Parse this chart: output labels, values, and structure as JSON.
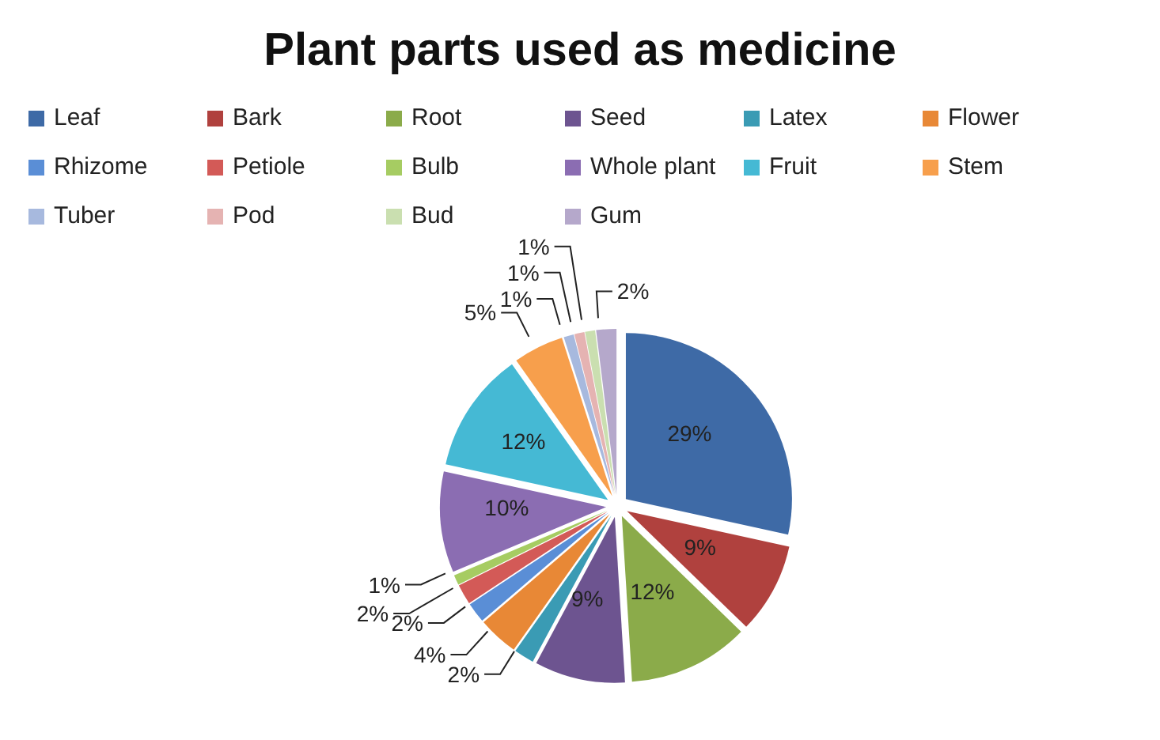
{
  "chart_data": {
    "type": "pie",
    "title": "Plant parts used as medicine",
    "categories": [
      "Leaf",
      "Bark",
      "Root",
      "Seed",
      "Latex",
      "Flower",
      "Rhizome",
      "Petiole",
      "Bulb",
      "Whole plant",
      "Fruit",
      "Stem",
      "Tuber",
      "Pod",
      "Bud",
      "Gum"
    ],
    "values": [
      29,
      9,
      12,
      9,
      2,
      4,
      2,
      2,
      1,
      10,
      12,
      5,
      1,
      1,
      1,
      2
    ],
    "value_labels": [
      "29%",
      "9%",
      "12%",
      "9%",
      "2%",
      "4%",
      "2%",
      "2%",
      "1%",
      "10%",
      "12%",
      "5%",
      "1%",
      "1%",
      "1%",
      "2%"
    ],
    "colors": [
      "#3e6aa6",
      "#b0413e",
      "#8bab4a",
      "#6d5490",
      "#3a9bb4",
      "#e88836",
      "#5a8ed6",
      "#d35a57",
      "#a6cc62",
      "#8b6db2",
      "#45b9d4",
      "#f79f4c",
      "#a7b9de",
      "#e5b3b2",
      "#cadfb0",
      "#b5a8cb"
    ],
    "legend": "top"
  }
}
